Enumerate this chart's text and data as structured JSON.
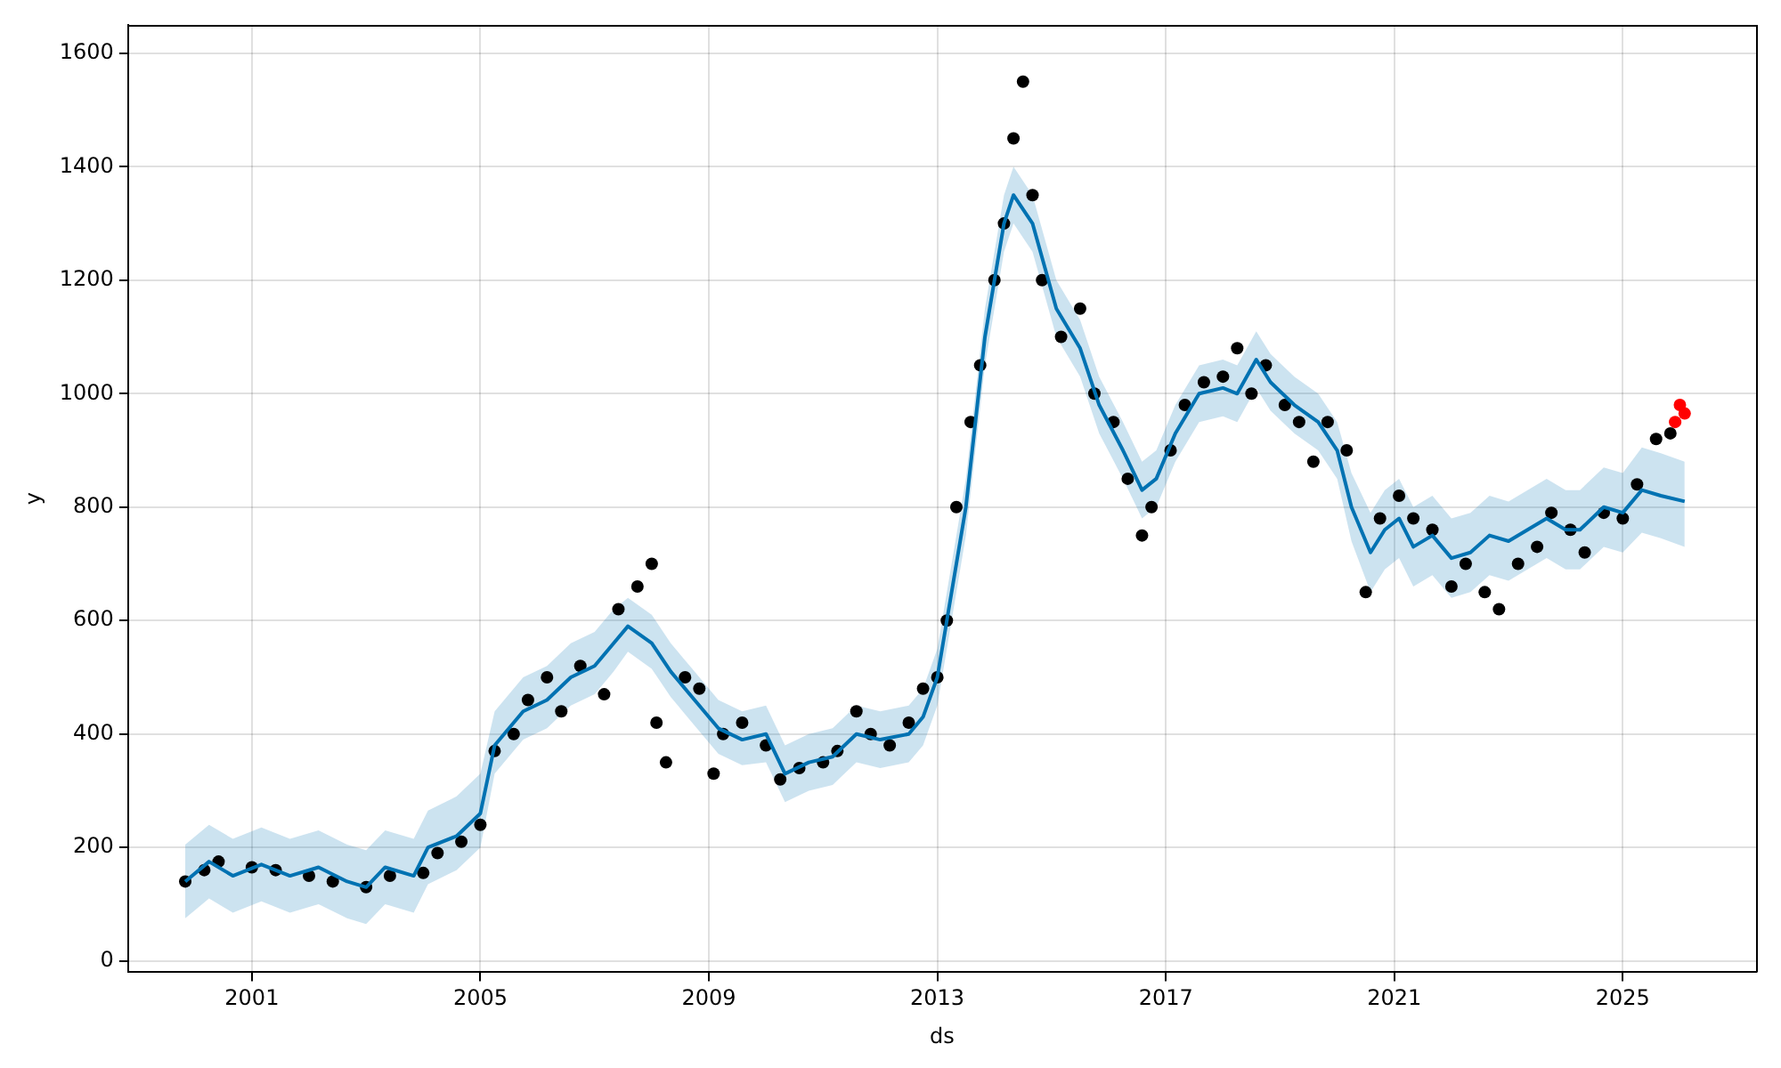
{
  "chart_data": {
    "type": "scatter",
    "xlabel": "ds",
    "ylabel": "y",
    "xlim": [
      "1998-11",
      "2027-05"
    ],
    "xticks": [
      "2001",
      "2005",
      "2009",
      "2013",
      "2017",
      "2021",
      "2025"
    ],
    "ylim": [
      -20,
      1650
    ],
    "yticks": [
      0,
      200,
      400,
      600,
      800,
      1000,
      1200,
      1400,
      1600
    ],
    "grid": true,
    "series": [
      {
        "type": "line",
        "color": "#0072b2",
        "marker": "none",
        "x": [
          "1999-11",
          "2000-04",
          "2000-09",
          "2001-03",
          "2001-09",
          "2002-03",
          "2002-09",
          "2003-01",
          "2003-05",
          "2003-11",
          "2004-02",
          "2004-08",
          "2005-01",
          "2005-04",
          "2005-10",
          "2006-03",
          "2006-08",
          "2007-01",
          "2007-05",
          "2007-08",
          "2008-01",
          "2008-05",
          "2008-10",
          "2009-03",
          "2009-08",
          "2010-01",
          "2010-05",
          "2010-10",
          "2011-03",
          "2011-08",
          "2012-01",
          "2012-07",
          "2012-10",
          "2013-01",
          "2013-07",
          "2013-11",
          "2014-03",
          "2014-05",
          "2014-09",
          "2015-02",
          "2015-07",
          "2015-11",
          "2016-04",
          "2016-08",
          "2016-11",
          "2017-03",
          "2017-08",
          "2018-01",
          "2018-04",
          "2018-08",
          "2018-11",
          "2019-04",
          "2019-09",
          "2020-01",
          "2020-04",
          "2020-08",
          "2020-11",
          "2021-02",
          "2021-05",
          "2021-09",
          "2022-01",
          "2022-05",
          "2022-09",
          "2023-01",
          "2023-05",
          "2023-09",
          "2024-01",
          "2024-04",
          "2024-09",
          "2025-01",
          "2025-05",
          "2025-09",
          "2026-02"
        ],
        "values": [
          140,
          175,
          150,
          170,
          150,
          165,
          140,
          130,
          165,
          150,
          200,
          220,
          260,
          380,
          440,
          460,
          500,
          520,
          560,
          590,
          560,
          510,
          460,
          410,
          390,
          400,
          330,
          350,
          360,
          400,
          390,
          400,
          430,
          500,
          800,
          1100,
          1300,
          1350,
          1300,
          1150,
          1080,
          980,
          900,
          830,
          850,
          930,
          1000,
          1010,
          1000,
          1060,
          1020,
          980,
          950,
          900,
          800,
          720,
          760,
          780,
          730,
          750,
          710,
          720,
          750,
          740,
          760,
          780,
          760,
          760,
          800,
          790,
          830,
          820,
          810
        ],
        "lower": [
          75,
          110,
          85,
          105,
          85,
          100,
          75,
          65,
          100,
          85,
          135,
          160,
          200,
          330,
          390,
          410,
          450,
          470,
          510,
          545,
          515,
          465,
          415,
          365,
          345,
          350,
          280,
          300,
          310,
          350,
          340,
          350,
          380,
          450,
          750,
          1050,
          1250,
          1300,
          1250,
          1100,
          1030,
          930,
          850,
          780,
          800,
          880,
          950,
          960,
          950,
          1010,
          970,
          930,
          900,
          850,
          740,
          650,
          690,
          710,
          660,
          680,
          640,
          650,
          680,
          670,
          690,
          710,
          690,
          690,
          730,
          720,
          755,
          745,
          730
        ],
        "upper": [
          205,
          240,
          215,
          235,
          215,
          230,
          205,
          195,
          230,
          215,
          265,
          290,
          330,
          440,
          500,
          520,
          560,
          580,
          620,
          640,
          610,
          560,
          510,
          460,
          440,
          450,
          380,
          400,
          410,
          450,
          440,
          450,
          480,
          550,
          850,
          1150,
          1350,
          1400,
          1350,
          1200,
          1130,
          1030,
          950,
          880,
          900,
          980,
          1050,
          1060,
          1050,
          1110,
          1070,
          1030,
          1000,
          950,
          860,
          790,
          830,
          850,
          800,
          820,
          780,
          790,
          820,
          810,
          830,
          850,
          830,
          830,
          870,
          860,
          905,
          895,
          880
        ]
      },
      {
        "color": "#000000",
        "marker": "circle",
        "x": [
          "1999-11",
          "2000-03",
          "2000-06",
          "2001-01",
          "2001-06",
          "2002-01",
          "2002-06",
          "2003-01",
          "2003-06",
          "2004-01",
          "2004-04",
          "2004-09",
          "2005-01",
          "2005-04",
          "2005-08",
          "2005-11",
          "2006-03",
          "2006-06",
          "2006-10",
          "2007-03",
          "2007-06",
          "2007-10",
          "2008-01",
          "2008-02",
          "2008-04",
          "2008-08",
          "2008-11",
          "2009-02",
          "2009-04",
          "2009-08",
          "2010-01",
          "2010-04",
          "2010-08",
          "2011-01",
          "2011-04",
          "2011-08",
          "2011-11",
          "2012-03",
          "2012-07",
          "2012-10",
          "2013-01",
          "2013-03",
          "2013-05",
          "2013-08",
          "2013-10",
          "2014-01",
          "2014-03",
          "2014-05",
          "2014-07",
          "2014-09",
          "2014-11",
          "2015-03",
          "2015-07",
          "2015-10",
          "2016-02",
          "2016-05",
          "2016-08",
          "2016-10",
          "2017-02",
          "2017-05",
          "2017-09",
          "2018-01",
          "2018-04",
          "2018-07",
          "2018-10",
          "2019-02",
          "2019-05",
          "2019-08",
          "2019-11",
          "2020-03",
          "2020-07",
          "2020-10",
          "2021-02",
          "2021-05",
          "2021-09",
          "2022-01",
          "2022-04",
          "2022-08",
          "2022-11",
          "2023-03",
          "2023-07",
          "2023-10",
          "2024-02",
          "2024-05",
          "2024-09",
          "2025-01",
          "2025-04",
          "2025-08",
          "2025-11"
        ],
        "values": [
          140,
          160,
          175,
          165,
          160,
          150,
          140,
          130,
          150,
          155,
          190,
          210,
          240,
          370,
          400,
          460,
          500,
          440,
          520,
          470,
          620,
          660,
          700,
          420,
          350,
          500,
          480,
          330,
          400,
          420,
          380,
          320,
          340,
          350,
          370,
          440,
          400,
          380,
          420,
          480,
          500,
          600,
          800,
          950,
          1050,
          1200,
          1300,
          1450,
          1550,
          1350,
          1200,
          1100,
          1150,
          1000,
          950,
          850,
          750,
          800,
          900,
          980,
          1020,
          1030,
          1080,
          1000,
          1050,
          980,
          950,
          880,
          950,
          900,
          650,
          780,
          820,
          780,
          760,
          660,
          700,
          650,
          620,
          700,
          730,
          790,
          760,
          720,
          790,
          780,
          840,
          920,
          930
        ]
      },
      {
        "color": "#ff0000",
        "marker": "circle",
        "x": [
          "2025-12",
          "2026-01",
          "2026-02"
        ],
        "values": [
          950,
          980,
          965
        ]
      }
    ]
  }
}
